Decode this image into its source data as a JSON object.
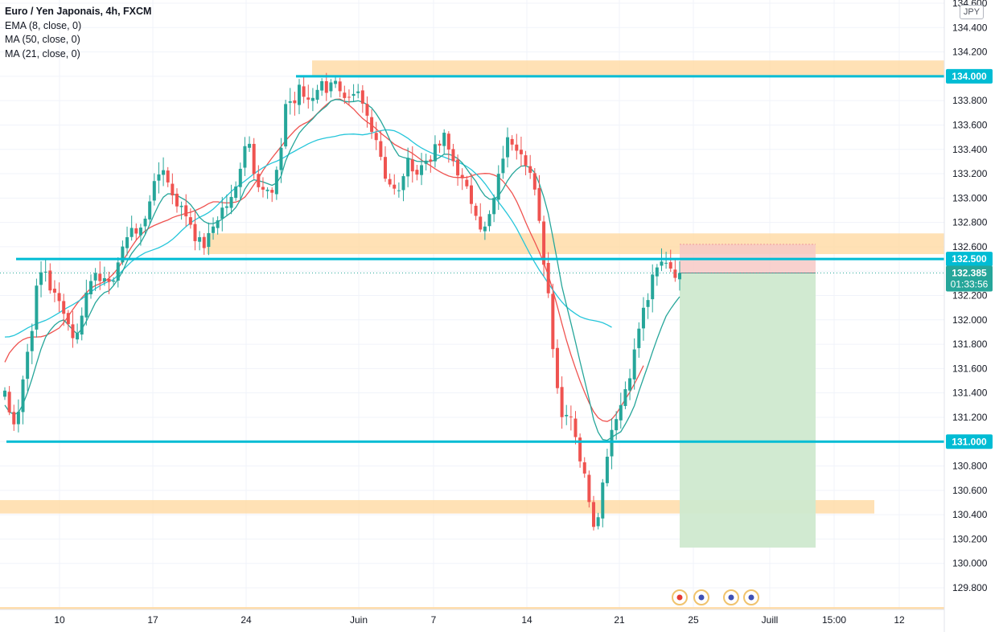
{
  "header": {
    "symbol": "Euro / Yen Japonais, 4h, FXCM",
    "indicators": [
      "EMA (8, close, 0)",
      "MA (50, close, 0)",
      "MA (21, close, 0)"
    ],
    "currency": "JPY"
  },
  "chart_data": {
    "type": "candlestick",
    "symbol": "Euro / Yen Japonais",
    "timeframe": "4h",
    "source": "FXCM",
    "price_axis": {
      "ylim": [
        129.7,
        134.6
      ],
      "ticks": [
        "134.600",
        "134.400",
        "134.200",
        "134.000",
        "133.800",
        "133.600",
        "133.400",
        "133.200",
        "133.000",
        "132.800",
        "132.600",
        "132.400",
        "132.200",
        "132.000",
        "131.800",
        "131.600",
        "131.400",
        "131.200",
        "131.000",
        "130.800",
        "130.600",
        "130.400",
        "130.200",
        "130.000",
        "129.800"
      ]
    },
    "time_axis": {
      "labels": [
        "10",
        "17",
        "24",
        "Juin",
        "7",
        "14",
        "21",
        "25",
        "Juill",
        "15:00",
        "12"
      ]
    },
    "price_badges": [
      {
        "label": "134.000",
        "value": 134.0,
        "kind": "level"
      },
      {
        "label": "132.500",
        "value": 132.5,
        "kind": "level"
      },
      {
        "label": "132.385",
        "value": 132.385,
        "kind": "last"
      },
      {
        "label": "01:33:56",
        "kind": "countdown"
      },
      {
        "label": "131.000",
        "value": 131.0,
        "kind": "level"
      }
    ],
    "horizontal_lines": [
      134.0,
      132.5,
      131.0
    ],
    "zones": [
      {
        "from": 134.0,
        "to": 134.13
      },
      {
        "from": 132.54,
        "to": 132.71
      },
      {
        "from": 130.41,
        "to": 130.52
      }
    ],
    "last_price": 132.385,
    "position": {
      "type": "short",
      "entry": 132.385,
      "stop": 132.62,
      "target": 130.13
    },
    "series": [
      {
        "name": "EMA (8, close, 0)",
        "color": "#26a69a"
      },
      {
        "name": "MA (50, close, 0)",
        "color": "#26c6da"
      },
      {
        "name": "MA (21, close, 0)",
        "color": "#ef5350"
      }
    ],
    "price_path": [
      131.42,
      131.15,
      131.25,
      131.6,
      131.9,
      132.3,
      132.45,
      132.25,
      132.15,
      132.1,
      131.9,
      131.85,
      132.15,
      132.3,
      132.45,
      132.3,
      132.25,
      132.45,
      132.55,
      132.8,
      132.7,
      132.75,
      133.0,
      133.1,
      133.3,
      133.1,
      133.0,
      132.9,
      132.85,
      132.7,
      132.6,
      132.65,
      132.8,
      132.9,
      132.95,
      133.0,
      133.3,
      133.55,
      133.25,
      133.1,
      133.05,
      133.02,
      133.35,
      133.85,
      133.75,
      133.9,
      133.8,
      133.85,
      133.95,
      133.9,
      134.0,
      133.85,
      133.75,
      133.8,
      133.85,
      133.7,
      133.6,
      133.45,
      133.2,
      133.1,
      133.0,
      133.25,
      133.3,
      133.2,
      133.3,
      133.35,
      133.4,
      133.5,
      133.35,
      133.25,
      133.1,
      133.0,
      132.9,
      132.7,
      132.85,
      133.05,
      133.35,
      133.5,
      133.45,
      133.4,
      133.25,
      133.0,
      132.6,
      132.2,
      131.6,
      131.2,
      131.3,
      131.1,
      130.8,
      130.6,
      130.3,
      130.55,
      130.95,
      131.2,
      131.3,
      131.5,
      131.7,
      132.0,
      132.15,
      132.35,
      132.45,
      132.5,
      132.4,
      132.385
    ],
    "ema8_path": [
      131.3,
      131.22,
      131.23,
      131.33,
      131.49,
      131.67,
      131.84,
      131.92,
      131.98,
      132.0,
      131.94,
      131.88,
      131.94,
      132.05,
      132.16,
      132.22,
      132.24,
      132.31,
      132.4,
      132.52,
      132.59,
      132.65,
      132.77,
      132.89,
      133.0,
      133.04,
      133.03,
      133.0,
      132.97,
      132.9,
      132.82,
      132.79,
      132.79,
      132.82,
      132.86,
      132.9,
      132.99,
      133.12,
      133.15,
      133.14,
      133.12,
      133.1,
      133.15,
      133.33,
      133.44,
      133.54,
      133.6,
      133.65,
      133.71,
      133.75,
      133.81,
      133.81,
      133.79,
      133.79,
      133.8,
      133.78,
      133.74,
      133.67,
      133.57,
      133.45,
      133.35,
      133.33,
      133.32,
      133.3,
      133.3,
      133.3,
      133.32,
      133.36,
      133.36,
      133.33,
      133.28,
      133.2,
      133.13,
      133.03,
      132.99,
      132.99,
      133.07,
      133.17,
      133.23,
      133.27,
      133.26,
      133.2,
      133.06,
      132.86,
      132.58,
      132.28,
      132.06,
      131.84,
      131.61,
      131.39,
      131.15,
      131.02,
      131.01,
      131.05,
      131.08,
      131.17,
      131.28,
      131.45,
      131.6,
      131.76,
      131.91,
      132.04,
      132.12,
      132.19
    ]
  }
}
